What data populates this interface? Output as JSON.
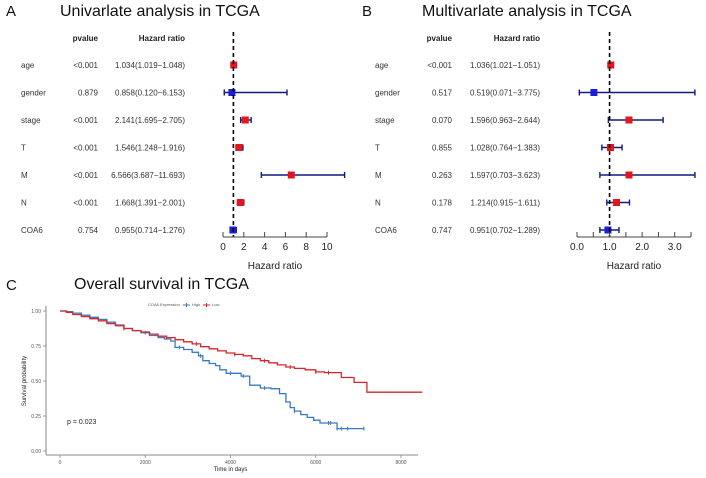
{
  "chart_data": [
    {
      "type": "forest",
      "panel": "A",
      "title": "Univarlate analysis in TCGA",
      "column_headers": {
        "pvalue": "pvalue",
        "hr": "Hazard ratio"
      },
      "xlabel": "Hazard ratio",
      "xlim": [
        0,
        10
      ],
      "xticks": [
        0,
        2,
        4,
        6,
        8,
        10
      ],
      "xtick_labels": [
        "0",
        "2",
        "4",
        "6",
        "8",
        "10"
      ],
      "reference_line": 1,
      "rows": [
        {
          "label": "age",
          "pvalue": "<0.001",
          "hr_text": "1.034(1.019−1.048)",
          "hr": 1.034,
          "lower": 1.019,
          "upper": 1.048,
          "risk": "high"
        },
        {
          "label": "gender",
          "pvalue": "0.879",
          "hr_text": "0.858(0.120−6.153)",
          "hr": 0.858,
          "lower": 0.12,
          "upper": 6.153,
          "risk": "low"
        },
        {
          "label": "stage",
          "pvalue": "<0.001",
          "hr_text": "2.141(1.695−2.705)",
          "hr": 2.141,
          "lower": 1.695,
          "upper": 2.705,
          "risk": "high"
        },
        {
          "label": "T",
          "pvalue": "<0.001",
          "hr_text": "1.546(1.248−1.916)",
          "hr": 1.546,
          "lower": 1.248,
          "upper": 1.916,
          "risk": "high"
        },
        {
          "label": "M",
          "pvalue": "<0.001",
          "hr_text": "6.566(3.687−11.693)",
          "hr": 6.566,
          "lower": 3.687,
          "upper": 11.693,
          "risk": "high"
        },
        {
          "label": "N",
          "pvalue": "<0.001",
          "hr_text": "1.668(1.391−2.001)",
          "hr": 1.668,
          "lower": 1.391,
          "upper": 2.001,
          "risk": "high"
        },
        {
          "label": "COA6",
          "pvalue": "0.754",
          "hr_text": "0.955(0.714−1.276)",
          "hr": 0.955,
          "lower": 0.714,
          "upper": 1.276,
          "risk": "low"
        }
      ]
    },
    {
      "type": "forest",
      "panel": "B",
      "title": "Multivarlate analysis in TCGA",
      "column_headers": {
        "pvalue": "pvalue",
        "hr": "Hazard ratio"
      },
      "xlabel": "Hazard ratio",
      "xlim": [
        0,
        3.5
      ],
      "xticks": [
        0,
        0.5,
        1,
        1.5,
        2,
        2.5,
        3,
        3.5
      ],
      "xtick_labels": [
        "0.0",
        "",
        "1.0",
        "",
        "2.0",
        "",
        "3.0",
        ""
      ],
      "reference_line": 1,
      "rows": [
        {
          "label": "age",
          "pvalue": "<0.001",
          "hr_text": "1.036(1.021−1.051)",
          "hr": 1.036,
          "lower": 1.021,
          "upper": 1.051,
          "risk": "high"
        },
        {
          "label": "gender",
          "pvalue": "0.517",
          "hr_text": "0.519(0.071−3.775)",
          "hr": 0.519,
          "lower": 0.071,
          "upper": 3.775,
          "risk": "low"
        },
        {
          "label": "stage",
          "pvalue": "0.070",
          "hr_text": "1.596(0.963−2.644)",
          "hr": 1.596,
          "lower": 0.963,
          "upper": 2.644,
          "risk": "high"
        },
        {
          "label": "T",
          "pvalue": "0.855",
          "hr_text": "1.028(0.764−1.383)",
          "hr": 1.028,
          "lower": 0.764,
          "upper": 1.383,
          "risk": "high"
        },
        {
          "label": "M",
          "pvalue": "0.263",
          "hr_text": "1.597(0.703−3.623)",
          "hr": 1.597,
          "lower": 0.703,
          "upper": 3.623,
          "risk": "high"
        },
        {
          "label": "N",
          "pvalue": "0.178",
          "hr_text": "1.214(0.915−1.611)",
          "hr": 1.214,
          "lower": 0.915,
          "upper": 1.611,
          "risk": "high"
        },
        {
          "label": "COA6",
          "pvalue": "0.747",
          "hr_text": "0.951(0.702−1.289)",
          "hr": 0.951,
          "lower": 0.702,
          "upper": 1.289,
          "risk": "low"
        }
      ]
    },
    {
      "type": "line",
      "subtype": "kaplan-meier",
      "panel": "C",
      "title": "Overall survival in TCGA",
      "xlabel": "Time in days",
      "ylabel": "Survival probability",
      "xlim": [
        -300,
        8500
      ],
      "ylim": [
        0,
        1
      ],
      "xticks": [
        0,
        2000,
        4000,
        6000,
        8000
      ],
      "yticks": [
        0,
        0.25,
        0.5,
        0.75,
        1.0
      ],
      "ytick_labels": [
        "0.00",
        "0.25",
        "0.50",
        "0.75",
        "1.00"
      ],
      "legend_title": "COA6 Expression",
      "legend_position": "top-right",
      "annotation": "p = 0.023",
      "series": [
        {
          "name": "High",
          "color": "#3a7bbf",
          "points": [
            [
              0,
              1.0
            ],
            [
              150,
              0.995
            ],
            [
              300,
              0.985
            ],
            [
              500,
              0.97
            ],
            [
              700,
              0.955
            ],
            [
              900,
              0.94
            ],
            [
              1100,
              0.92
            ],
            [
              1300,
              0.9
            ],
            [
              1500,
              0.875
            ],
            [
              1700,
              0.86
            ],
            [
              1900,
              0.845
            ],
            [
              2100,
              0.825
            ],
            [
              2300,
              0.81
            ],
            [
              2450,
              0.8
            ],
            [
              2600,
              0.785
            ],
            [
              2700,
              0.74
            ],
            [
              2900,
              0.725
            ],
            [
              3100,
              0.705
            ],
            [
              3250,
              0.68
            ],
            [
              3350,
              0.645
            ],
            [
              3500,
              0.625
            ],
            [
              3650,
              0.61
            ],
            [
              3750,
              0.58
            ],
            [
              3900,
              0.555
            ],
            [
              4100,
              0.555
            ],
            [
              4250,
              0.535
            ],
            [
              4450,
              0.47
            ],
            [
              4700,
              0.45
            ],
            [
              4950,
              0.445
            ],
            [
              5150,
              0.41
            ],
            [
              5300,
              0.35
            ],
            [
              5400,
              0.31
            ],
            [
              5500,
              0.285
            ],
            [
              5650,
              0.26
            ],
            [
              5800,
              0.24
            ],
            [
              5950,
              0.22
            ],
            [
              6100,
              0.2
            ],
            [
              6300,
              0.2
            ],
            [
              6500,
              0.16
            ],
            [
              7130,
              0.16
            ]
          ],
          "censor_times": [
            2000,
            2800,
            3300,
            4000,
            4300,
            4800,
            5500,
            6300,
            6350,
            6500,
            6600,
            6750,
            7130
          ]
        },
        {
          "name": "Low",
          "color": "#d7262b",
          "points": [
            [
              0,
              1.0
            ],
            [
              150,
              0.99
            ],
            [
              300,
              0.975
            ],
            [
              500,
              0.96
            ],
            [
              700,
              0.945
            ],
            [
              900,
              0.93
            ],
            [
              1100,
              0.91
            ],
            [
              1300,
              0.895
            ],
            [
              1500,
              0.875
            ],
            [
              1700,
              0.86
            ],
            [
              1900,
              0.85
            ],
            [
              2100,
              0.835
            ],
            [
              2300,
              0.82
            ],
            [
              2500,
              0.81
            ],
            [
              2700,
              0.795
            ],
            [
              2900,
              0.78
            ],
            [
              3100,
              0.765
            ],
            [
              3300,
              0.745
            ],
            [
              3500,
              0.73
            ],
            [
              3700,
              0.715
            ],
            [
              3900,
              0.7
            ],
            [
              4100,
              0.69
            ],
            [
              4300,
              0.68
            ],
            [
              4500,
              0.66
            ],
            [
              4700,
              0.645
            ],
            [
              4900,
              0.63
            ],
            [
              5100,
              0.615
            ],
            [
              5300,
              0.6
            ],
            [
              5500,
              0.59
            ],
            [
              5750,
              0.58
            ],
            [
              6000,
              0.565
            ],
            [
              6200,
              0.56
            ],
            [
              6600,
              0.525
            ],
            [
              6900,
              0.49
            ],
            [
              7200,
              0.42
            ],
            [
              8000,
              0.42
            ],
            [
              8500,
              0.42
            ]
          ],
          "censor_times": [
            1500,
            2500,
            3200,
            4100,
            4800,
            5400,
            6000,
            6300
          ]
        }
      ]
    }
  ]
}
